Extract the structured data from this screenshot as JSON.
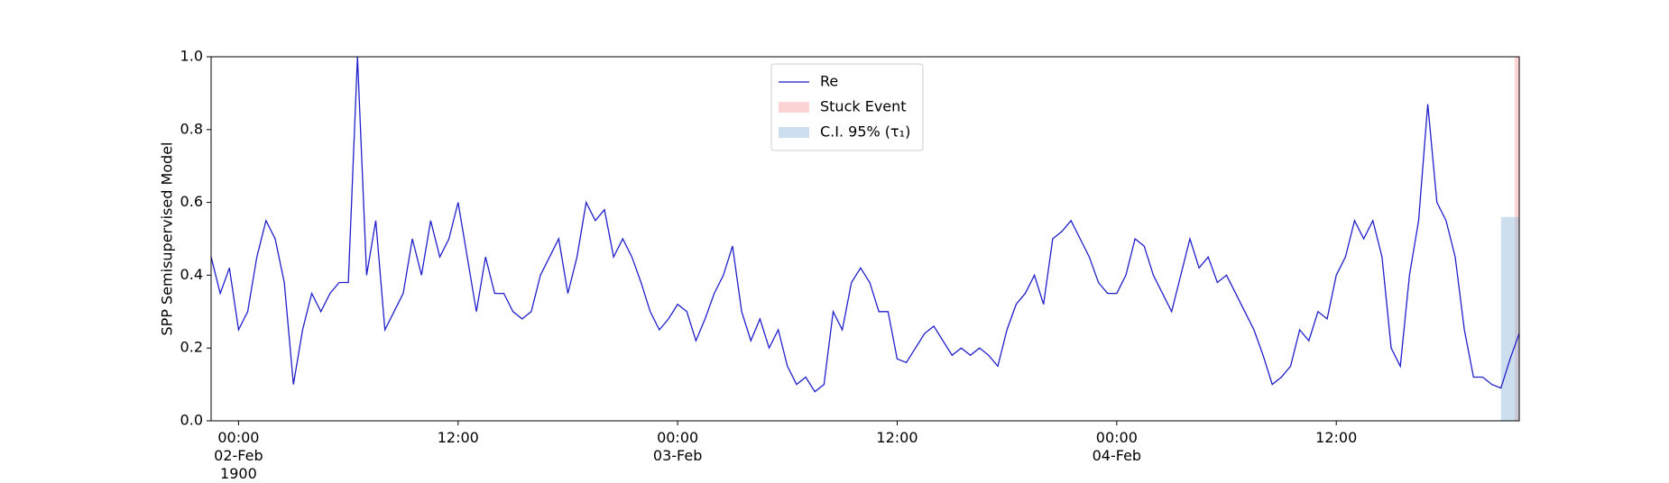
{
  "chart_data": {
    "type": "line",
    "y_label": "SPP Semisupervised Model",
    "xlim": [
      "1900-02-01 22:30",
      "1900-02-04 22:00"
    ],
    "xticks": [
      {
        "value": "1900-02-02 00:00",
        "label": "00:00\n02-Feb\n1900"
      },
      {
        "value": "1900-02-02 12:00",
        "label": "12:00"
      },
      {
        "value": "1900-02-03 00:00",
        "label": "00:00\n03-Feb"
      },
      {
        "value": "1900-02-03 12:00",
        "label": "12:00"
      },
      {
        "value": "1900-02-04 00:00",
        "label": "00:00\n04-Feb"
      },
      {
        "value": "1900-02-04 12:00",
        "label": "12:00"
      }
    ],
    "ylim": [
      0,
      1
    ],
    "yticks": [
      {
        "value": 0,
        "label": "0.0"
      },
      {
        "value": 0.2,
        "label": "0.2"
      },
      {
        "value": 0.4,
        "label": "0.4"
      },
      {
        "value": 0.6,
        "label": "0.6"
      },
      {
        "value": 0.8,
        "label": "0.8"
      },
      {
        "value": 1,
        "label": "1.0"
      }
    ],
    "legend": "upper center",
    "x": [
      "1900-02-01 22:30",
      "1900-02-01 23:00",
      "1900-02-01 23:30",
      "1900-02-02 00:00",
      "1900-02-02 00:30",
      "1900-02-02 01:00",
      "1900-02-02 01:30",
      "1900-02-02 02:00",
      "1900-02-02 02:30",
      "1900-02-02 03:00",
      "1900-02-02 03:30",
      "1900-02-02 04:00",
      "1900-02-02 04:30",
      "1900-02-02 05:00",
      "1900-02-02 05:30",
      "1900-02-02 06:00",
      "1900-02-02 06:30",
      "1900-02-02 07:00",
      "1900-02-02 07:30",
      "1900-02-02 08:00",
      "1900-02-02 08:30",
      "1900-02-02 09:00",
      "1900-02-02 09:30",
      "1900-02-02 10:00",
      "1900-02-02 10:30",
      "1900-02-02 11:00",
      "1900-02-02 11:30",
      "1900-02-02 12:00",
      "1900-02-02 12:30",
      "1900-02-02 13:00",
      "1900-02-02 13:30",
      "1900-02-02 14:00",
      "1900-02-02 14:30",
      "1900-02-02 15:00",
      "1900-02-02 15:30",
      "1900-02-02 16:00",
      "1900-02-02 16:30",
      "1900-02-02 17:00",
      "1900-02-02 17:30",
      "1900-02-02 18:00",
      "1900-02-02 18:30",
      "1900-02-02 19:00",
      "1900-02-02 19:30",
      "1900-02-02 20:00",
      "1900-02-02 20:30",
      "1900-02-02 21:00",
      "1900-02-02 21:30",
      "1900-02-02 22:00",
      "1900-02-02 22:30",
      "1900-02-02 23:00",
      "1900-02-02 23:30",
      "1900-02-03 00:00",
      "1900-02-03 00:30",
      "1900-02-03 01:00",
      "1900-02-03 01:30",
      "1900-02-03 02:00",
      "1900-02-03 02:30",
      "1900-02-03 03:00",
      "1900-02-03 03:30",
      "1900-02-03 04:00",
      "1900-02-03 04:30",
      "1900-02-03 05:00",
      "1900-02-03 05:30",
      "1900-02-03 06:00",
      "1900-02-03 06:30",
      "1900-02-03 07:00",
      "1900-02-03 07:30",
      "1900-02-03 08:00",
      "1900-02-03 08:30",
      "1900-02-03 09:00",
      "1900-02-03 09:30",
      "1900-02-03 10:00",
      "1900-02-03 10:30",
      "1900-02-03 11:00",
      "1900-02-03 11:30",
      "1900-02-03 12:00",
      "1900-02-03 12:30",
      "1900-02-03 13:00",
      "1900-02-03 13:30",
      "1900-02-03 14:00",
      "1900-02-03 14:30",
      "1900-02-03 15:00",
      "1900-02-03 15:30",
      "1900-02-03 16:00",
      "1900-02-03 16:30",
      "1900-02-03 17:00",
      "1900-02-03 17:30",
      "1900-02-03 18:00",
      "1900-02-03 18:30",
      "1900-02-03 19:00",
      "1900-02-03 19:30",
      "1900-02-03 20:00",
      "1900-02-03 20:30",
      "1900-02-03 21:00",
      "1900-02-03 21:30",
      "1900-02-03 22:00",
      "1900-02-03 22:30",
      "1900-02-03 23:00",
      "1900-02-03 23:30",
      "1900-02-04 00:00",
      "1900-02-04 00:30",
      "1900-02-04 01:00",
      "1900-02-04 01:30",
      "1900-02-04 02:00",
      "1900-02-04 02:30",
      "1900-02-04 03:00",
      "1900-02-04 03:30",
      "1900-02-04 04:00",
      "1900-02-04 04:30",
      "1900-02-04 05:00",
      "1900-02-04 05:30",
      "1900-02-04 06:00",
      "1900-02-04 06:30",
      "1900-02-04 07:00",
      "1900-02-04 07:30",
      "1900-02-04 08:00",
      "1900-02-04 08:30",
      "1900-02-04 09:00",
      "1900-02-04 09:30",
      "1900-02-04 10:00",
      "1900-02-04 10:30",
      "1900-02-04 11:00",
      "1900-02-04 11:30",
      "1900-02-04 12:00",
      "1900-02-04 12:30",
      "1900-02-04 13:00",
      "1900-02-04 13:30",
      "1900-02-04 14:00",
      "1900-02-04 14:30",
      "1900-02-04 15:00",
      "1900-02-04 15:30",
      "1900-02-04 16:00",
      "1900-02-04 16:30",
      "1900-02-04 17:00",
      "1900-02-04 17:30",
      "1900-02-04 18:00",
      "1900-02-04 18:30",
      "1900-02-04 19:00",
      "1900-02-04 19:30",
      "1900-02-04 20:00",
      "1900-02-04 20:30",
      "1900-02-04 21:00",
      "1900-02-04 21:30",
      "1900-02-04 22:00"
    ],
    "series": [
      {
        "name": "Re",
        "color": "#1f1fcc",
        "values": [
          0.45,
          0.35,
          0.42,
          0.25,
          0.3,
          0.45,
          0.55,
          0.5,
          0.38,
          0.1,
          0.25,
          0.35,
          0.3,
          0.35,
          0.38,
          0.38,
          1.0,
          0.4,
          0.55,
          0.25,
          0.3,
          0.35,
          0.5,
          0.4,
          0.55,
          0.45,
          0.5,
          0.6,
          0.45,
          0.3,
          0.45,
          0.35,
          0.35,
          0.3,
          0.28,
          0.3,
          0.4,
          0.45,
          0.5,
          0.35,
          0.45,
          0.6,
          0.55,
          0.58,
          0.45,
          0.5,
          0.45,
          0.38,
          0.3,
          0.25,
          0.28,
          0.32,
          0.3,
          0.22,
          0.28,
          0.35,
          0.4,
          0.48,
          0.3,
          0.22,
          0.28,
          0.2,
          0.25,
          0.15,
          0.1,
          0.12,
          0.08,
          0.1,
          0.3,
          0.25,
          0.38,
          0.42,
          0.38,
          0.3,
          0.3,
          0.17,
          0.16,
          0.2,
          0.24,
          0.26,
          0.22,
          0.18,
          0.2,
          0.18,
          0.2,
          0.18,
          0.15,
          0.25,
          0.32,
          0.35,
          0.4,
          0.32,
          0.5,
          0.52,
          0.55,
          0.5,
          0.45,
          0.38,
          0.35,
          0.35,
          0.4,
          0.5,
          0.48,
          0.4,
          0.35,
          0.3,
          0.4,
          0.5,
          0.42,
          0.45,
          0.38,
          0.4,
          0.35,
          0.3,
          0.25,
          0.18,
          0.1,
          0.12,
          0.15,
          0.25,
          0.22,
          0.3,
          0.28,
          0.4,
          0.45,
          0.55,
          0.5,
          0.55,
          0.45,
          0.2,
          0.15,
          0.4,
          0.55,
          0.87,
          0.6,
          0.55,
          0.45,
          0.25,
          0.12,
          0.12,
          0.1,
          0.09,
          0.17,
          0.24
        ]
      }
    ],
    "spans": [
      {
        "name": "Stuck Event",
        "color": "#f8a0a0",
        "x": [
          "1900-02-04 21:45",
          "1900-02-04 22:00"
        ]
      },
      {
        "name": "C.I. 95% (τ₁)",
        "color": "#8fb8dc",
        "x": [
          "1900-02-04 21:00",
          "1900-02-04 22:00"
        ],
        "y": [
          0,
          0.56
        ]
      }
    ]
  }
}
